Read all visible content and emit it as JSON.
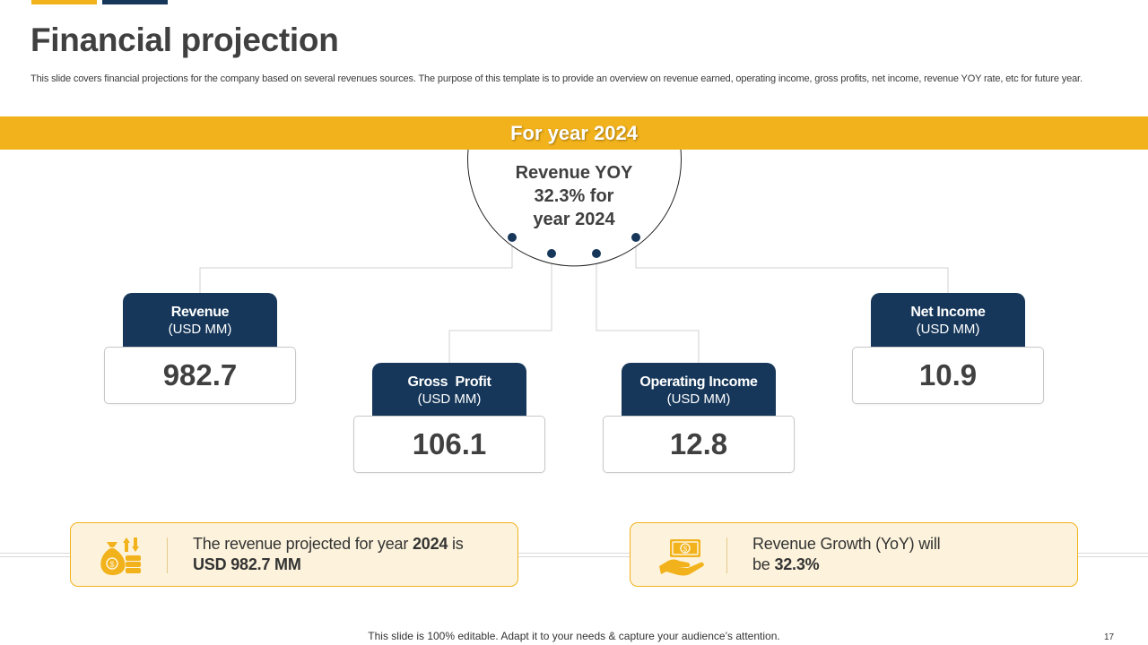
{
  "slide": {
    "title": "Financial projection",
    "subtitle": "This slide covers financial projections for the company based on several revenues sources. The purpose of this template is to provide an overview on revenue earned, operating income, gross profits, net income, revenue YOY rate, etc for future year.",
    "banner": "For year 2024",
    "center": {
      "line1": "Revenue YOY",
      "line2": "32.3% for",
      "line3": "year 2024"
    }
  },
  "metrics": {
    "revenue": {
      "label": "Revenue",
      "unit": "(USD MM)",
      "value": "982.7"
    },
    "gross_profit": {
      "label": "Gross  Profit",
      "unit": "(USD MM)",
      "value": "106.1"
    },
    "operating_income": {
      "label": "Operating Income",
      "unit": "(USD MM)",
      "value": "12.8"
    },
    "net_income": {
      "label": "Net Income",
      "unit": "(USD MM)",
      "value": "10.9"
    }
  },
  "notes": {
    "left": {
      "pre": "The revenue projected for year ",
      "year": "2024",
      "mid": " is",
      "amount": "USD 982.7 MM",
      "icon": "money-bag-coins-icon"
    },
    "right": {
      "line1": "Revenue Growth (YoY) will",
      "pre2": "be ",
      "pct": "32.3%",
      "icon": "cash-in-hand-icon"
    }
  },
  "footer": {
    "text": "This slide is 100% editable. Adapt it to your needs & capture your audience’s attention.",
    "page": "17"
  },
  "colors": {
    "accent": "#f2b21b",
    "navy": "#16375a",
    "text": "#404040"
  }
}
